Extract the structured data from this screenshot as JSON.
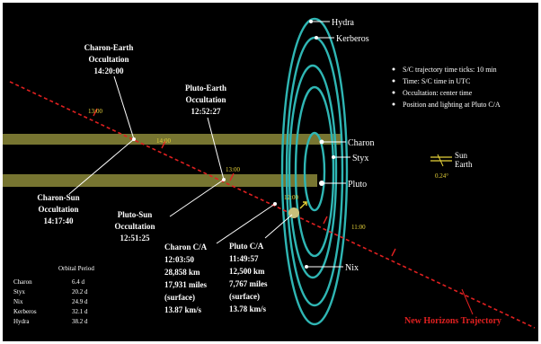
{
  "colors": {
    "background": "#000000",
    "orbit": "#2fb6b4",
    "trajectory": "#e02020",
    "time_tick": "#e6d23a",
    "band": "#8c8a3a",
    "text": "#ffffff",
    "sun_earth": "#e6d23a"
  },
  "notes": [
    "S/C trajectory time ticks: 10 min",
    "Time: S/C time in UTC",
    "Occultation: center time",
    "Position and lighting at Pluto C/A"
  ],
  "moons": {
    "hydra": "Hydra",
    "kerberos": "Kerberos",
    "charon": "Charon",
    "styx": "Styx",
    "pluto": "Pluto",
    "nix": "Nix"
  },
  "sun_earth": {
    "sun": "Sun",
    "earth": "Earth",
    "angle": "0.24°"
  },
  "time_ticks": {
    "t1": "13:00",
    "t2": "14:00",
    "t3": "13:00",
    "t4": "12:00",
    "t5": "11:00"
  },
  "events": {
    "charon_earth": {
      "title": "Charon-Earth",
      "subtitle": "Occultation",
      "time": "14:20:00"
    },
    "pluto_earth": {
      "title": "Pluto-Earth",
      "subtitle": "Occultation",
      "time": "12:52:27"
    },
    "charon_sun": {
      "title": "Charon-Sun",
      "subtitle": "Occultation",
      "time": "14:17:40"
    },
    "pluto_sun": {
      "title": "Pluto-Sun",
      "subtitle": "Occultation",
      "time": "12:51:25"
    },
    "charon_ca": {
      "lines": [
        "Charon C/A",
        "12:03:50",
        "28,858 km",
        "17,931 miles",
        "(surface)",
        "13.87 km/s"
      ]
    },
    "pluto_ca": {
      "lines": [
        "Pluto C/A",
        "11:49:57",
        "12,500 km",
        "7,767 miles",
        "(surface)",
        "13.78 km/s"
      ]
    }
  },
  "orbital_period": {
    "title": "Orbital Period",
    "rows": [
      {
        "name": "Charon",
        "value": "6.4 d"
      },
      {
        "name": "Styx",
        "value": "20.2 d"
      },
      {
        "name": "Nix",
        "value": "24.9 d"
      },
      {
        "name": "Kerberos",
        "value": "32.1 d"
      },
      {
        "name": "Hydra",
        "value": "38.2 d"
      }
    ]
  },
  "trajectory_label": "New Horizons Trajectory"
}
